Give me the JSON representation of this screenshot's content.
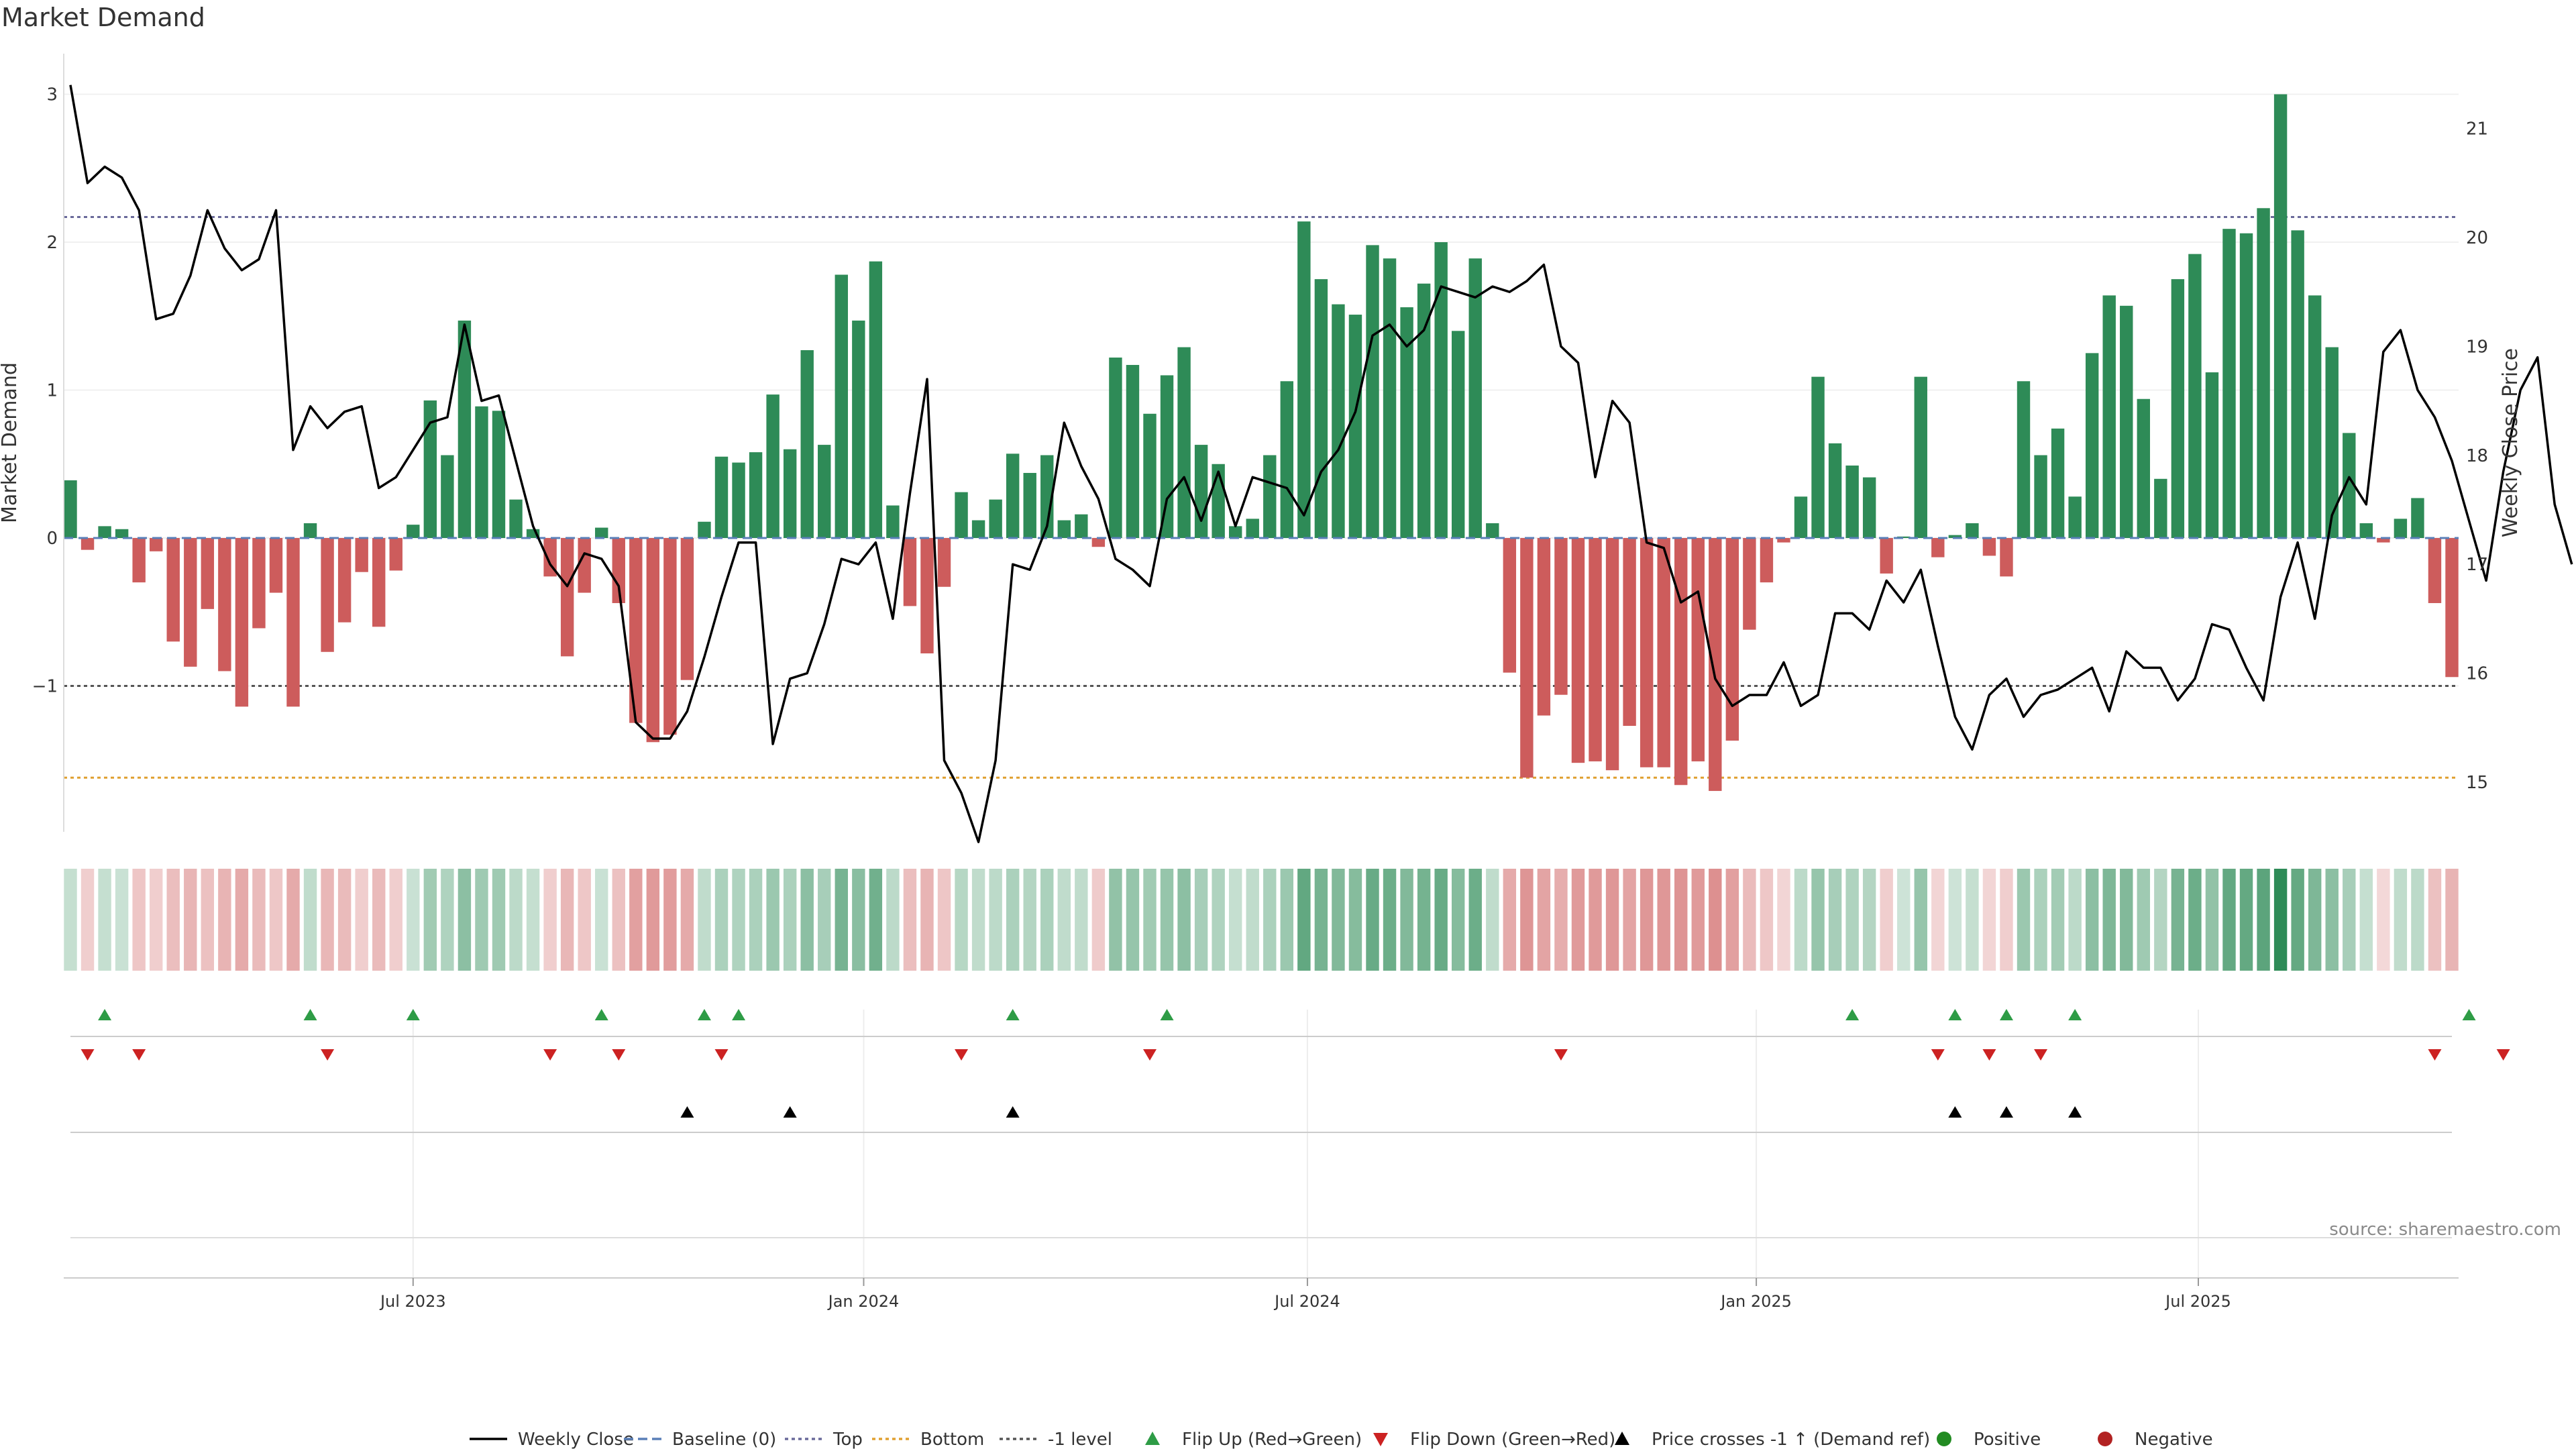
{
  "title": "Market Demand",
  "source": "source: sharemaestro.com",
  "colors": {
    "positive": "#2e8b57",
    "negative": "#cd5c5c",
    "price": "#000000",
    "top": "#6a6a9a",
    "bottom": "#e0a030",
    "neg1": "#555555",
    "flip_up": "#2e9c46",
    "flip_down": "#cc2222",
    "cross": "#000000"
  },
  "chart_data": {
    "type": "bar",
    "title": "Market Demand",
    "ylabel": "Market Demand",
    "y2label": "Weekly Close Price",
    "ylim": [
      -2,
      3.2
    ],
    "y2lim": [
      14.55,
      21.7
    ],
    "yticks": [
      3,
      2,
      1,
      0,
      -1
    ],
    "ytick_labels": [
      "3",
      "2",
      "1",
      "0",
      "−1"
    ],
    "y2ticks": [
      21,
      20,
      19,
      18,
      17,
      16,
      15
    ],
    "y2tick_labels": [
      "21",
      "20",
      "19",
      "18",
      "17",
      "16",
      "15"
    ],
    "reference_lines": {
      "top": 2.17,
      "bottom": -1.62,
      "neg1": -1.0,
      "baseline": 0
    },
    "x_ticks": [
      {
        "label": "Jul 2023",
        "week": 20
      },
      {
        "label": "Jan 2024",
        "week": 46.3
      },
      {
        "label": "Jul 2024",
        "week": 72.2
      },
      {
        "label": "Jan 2025",
        "week": 98.4
      },
      {
        "label": "Jul 2025",
        "week": 124.2
      }
    ],
    "demand": [
      0.39,
      -0.08,
      0.08,
      0.06,
      -0.3,
      -0.09,
      -0.7,
      -0.87,
      -0.48,
      -0.9,
      -1.14,
      -0.61,
      -0.37,
      -1.14,
      0.1,
      -0.77,
      -0.57,
      -0.23,
      -0.6,
      -0.22,
      0.09,
      0.93,
      0.56,
      1.47,
      0.89,
      0.86,
      0.26,
      0.06,
      -0.26,
      -0.8,
      -0.37,
      0.07,
      -0.44,
      -1.25,
      -1.38,
      -1.33,
      -0.96,
      0.11,
      0.55,
      0.51,
      0.58,
      0.97,
      0.6,
      1.27,
      0.63,
      1.78,
      1.47,
      1.87,
      0.22,
      -0.46,
      -0.78,
      -0.33,
      0.31,
      0.12,
      0.26,
      0.57,
      0.44,
      0.56,
      0.12,
      0.16,
      -0.06,
      1.22,
      1.17,
      0.84,
      1.1,
      1.29,
      0.63,
      0.5,
      0.08,
      0.13,
      0.56,
      1.06,
      2.14,
      1.75,
      1.58,
      1.51,
      1.98,
      1.89,
      1.56,
      1.72,
      2.0,
      1.4,
      1.89,
      0.1,
      -0.91,
      -1.62,
      -1.2,
      -1.06,
      -1.52,
      -1.51,
      -1.57,
      -1.27,
      -1.55,
      -1.55,
      -1.67,
      -1.51,
      -1.71,
      -1.37,
      -0.62,
      -0.3,
      -0.03,
      0.28,
      1.09,
      0.64,
      0.49,
      0.41,
      -0.24,
      0.01,
      1.09,
      -0.13,
      0.02,
      0.1,
      -0.12,
      -0.26,
      1.06,
      0.56,
      0.74,
      0.28,
      1.25,
      1.64,
      1.57,
      0.94,
      0.4,
      1.75,
      1.92,
      1.12,
      2.09,
      2.06,
      2.23,
      3.0,
      2.08,
      1.64,
      1.29,
      0.71,
      0.1,
      -0.03,
      0.13,
      0.27,
      -0.44,
      -0.94
    ],
    "price": [
      21.4,
      20.5,
      20.65,
      20.55,
      20.25,
      19.25,
      19.3,
      19.65,
      20.25,
      19.9,
      19.7,
      19.8,
      20.25,
      18.05,
      18.45,
      18.25,
      18.4,
      18.45,
      17.7,
      17.8,
      18.05,
      18.3,
      18.35,
      19.2,
      18.5,
      18.55,
      17.95,
      17.35,
      17.0,
      16.8,
      17.1,
      17.05,
      16.8,
      15.55,
      15.4,
      15.4,
      15.65,
      16.15,
      16.7,
      17.2,
      17.2,
      15.35,
      15.95,
      16.0,
      16.45,
      17.05,
      17.0,
      17.2,
      16.5,
      17.65,
      18.7,
      15.2,
      14.9,
      14.45,
      15.2,
      17.0,
      16.95,
      17.35,
      18.3,
      17.9,
      17.6,
      17.05,
      16.95,
      16.8,
      17.6,
      17.8,
      17.4,
      17.85,
      17.35,
      17.8,
      17.75,
      17.7,
      17.45,
      17.85,
      18.05,
      18.4,
      19.1,
      19.2,
      19.0,
      19.15,
      19.55,
      19.5,
      19.45,
      19.55,
      19.5,
      19.6,
      19.75,
      19.0,
      18.85,
      17.8,
      18.5,
      18.3,
      17.2,
      17.15,
      16.65,
      16.75,
      15.95,
      15.7,
      15.8,
      15.8,
      16.1,
      15.7,
      15.8,
      16.55,
      16.55,
      16.4,
      16.85,
      16.65,
      16.95,
      16.25,
      15.6,
      15.3,
      15.8,
      15.95,
      15.6,
      15.8,
      15.85,
      15.95,
      16.05,
      15.65,
      16.2,
      16.05,
      16.05,
      15.75,
      15.95,
      16.45,
      16.4,
      16.05,
      15.75,
      16.7,
      17.2,
      16.5,
      17.45,
      17.8,
      17.55,
      18.95,
      19.15,
      18.6,
      18.35,
      17.95,
      17.4,
      16.85,
      17.85,
      18.6,
      18.9,
      17.55,
      17.0
    ],
    "strip_levels": [
      0.28,
      0.3,
      0.28,
      0.26,
      0.35,
      0.3,
      0.4,
      0.45,
      0.38,
      0.46,
      0.52,
      0.42,
      0.34,
      0.52,
      0.3,
      0.44,
      0.42,
      0.3,
      0.42,
      0.3,
      0.26,
      0.45,
      0.38,
      0.55,
      0.46,
      0.46,
      0.32,
      0.28,
      0.3,
      0.44,
      0.34,
      0.26,
      0.38,
      0.58,
      0.62,
      0.6,
      0.52,
      0.3,
      0.4,
      0.38,
      0.4,
      0.48,
      0.4,
      0.55,
      0.42,
      0.65,
      0.56,
      0.68,
      0.32,
      0.4,
      0.46,
      0.35,
      0.35,
      0.3,
      0.32,
      0.4,
      0.36,
      0.4,
      0.3,
      0.3,
      0.32,
      0.52,
      0.5,
      0.45,
      0.5,
      0.55,
      0.42,
      0.38,
      0.28,
      0.3,
      0.4,
      0.48,
      0.75,
      0.65,
      0.6,
      0.58,
      0.72,
      0.7,
      0.6,
      0.66,
      0.72,
      0.58,
      0.7,
      0.3,
      0.52,
      0.65,
      0.56,
      0.5,
      0.62,
      0.62,
      0.64,
      0.56,
      0.64,
      0.64,
      0.66,
      0.62,
      0.68,
      0.58,
      0.42,
      0.34,
      0.26,
      0.32,
      0.5,
      0.42,
      0.38,
      0.36,
      0.3,
      0.24,
      0.5,
      0.26,
      0.24,
      0.28,
      0.26,
      0.3,
      0.48,
      0.4,
      0.44,
      0.32,
      0.55,
      0.62,
      0.6,
      0.46,
      0.36,
      0.65,
      0.7,
      0.52,
      0.74,
      0.74,
      0.78,
      1.0,
      0.74,
      0.62,
      0.55,
      0.42,
      0.28,
      0.24,
      0.3,
      0.32,
      0.38,
      0.46
    ],
    "flip_up_weeks": [
      2,
      14,
      20,
      31,
      37,
      39,
      55,
      64,
      104,
      110,
      113,
      117,
      140
    ],
    "flip_down_weeks": [
      1,
      4,
      15,
      28,
      32,
      38,
      52,
      63,
      87,
      109,
      112,
      115,
      138,
      142
    ],
    "price_cross_weeks": [
      36,
      42,
      55,
      110,
      113,
      117
    ]
  },
  "legend": [
    {
      "label": "Weekly Close",
      "symbol": "line-solid"
    },
    {
      "label": "Baseline (0)",
      "symbol": "line-dashed-blue"
    },
    {
      "label": "Top",
      "symbol": "line-dotted-top"
    },
    {
      "label": "Bottom",
      "symbol": "line-dotted-bottom"
    },
    {
      "label": "-1 level",
      "symbol": "line-dotted-neg1"
    },
    {
      "label": "Flip Up (Red→Green)",
      "symbol": "triangle-up-green"
    },
    {
      "label": "Flip Down (Green→Red)",
      "symbol": "triangle-down-red"
    },
    {
      "label": "Price crosses -1 ↑ (Demand ref)",
      "symbol": "triangle-up-black"
    },
    {
      "label": "Positive",
      "symbol": "dot-green"
    },
    {
      "label": "Negative",
      "symbol": "dot-red"
    }
  ]
}
